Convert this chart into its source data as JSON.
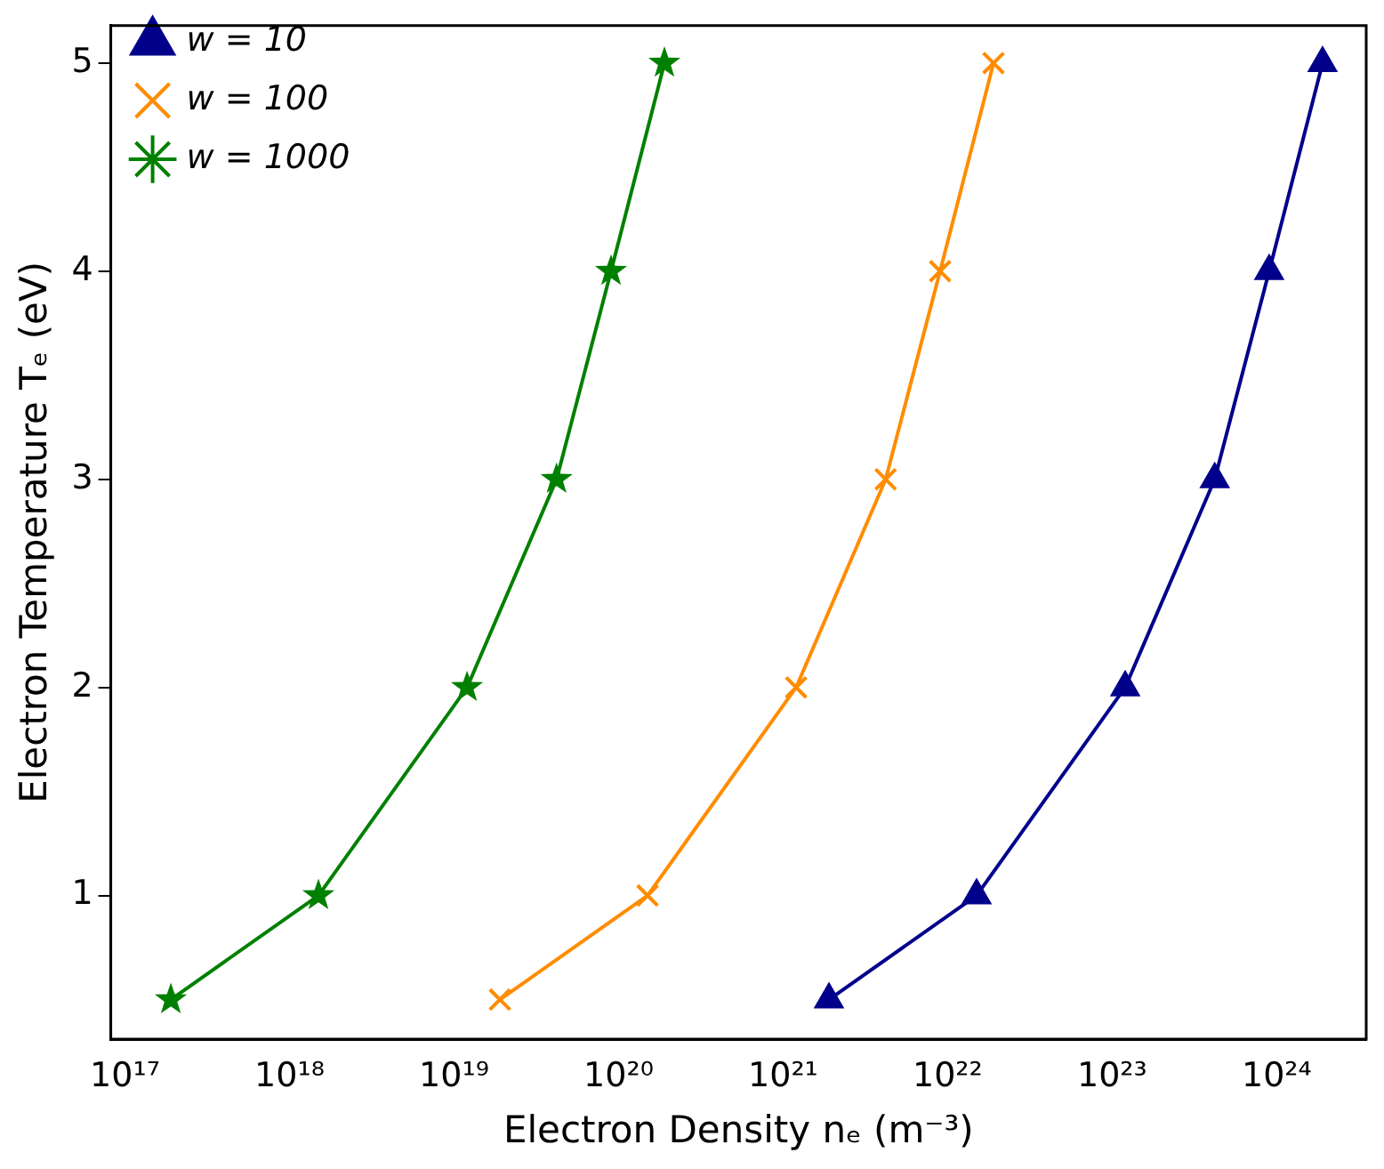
{
  "chart_data": {
    "type": "line",
    "xlabel": "Electron Density nₑ (m⁻³)",
    "ylabel": "Electron Temperature Tₑ (eV)",
    "log": "x",
    "grid": false,
    "legend": "top left",
    "xlim": [
      8.2e+16,
      3.5e+24
    ],
    "ylim": [
      0.31,
      5.18
    ],
    "xticks": [
      {
        "value": 1e+17,
        "label": "10¹⁷"
      },
      {
        "value": 1e+18,
        "label": "10¹⁸"
      },
      {
        "value": 1e+19,
        "label": "10¹⁹"
      },
      {
        "value": 1e+20,
        "label": "10²⁰"
      },
      {
        "value": 1e+21,
        "label": "10²¹"
      },
      {
        "value": 1e+22,
        "label": "10²²"
      },
      {
        "value": 1e+23,
        "label": "10²³"
      },
      {
        "value": 1e+24,
        "label": "10²⁴"
      }
    ],
    "yticks": [
      1,
      2,
      3,
      4,
      5
    ],
    "series": [
      {
        "name": "w = 10",
        "color": "#00008b",
        "marker": "triangle",
        "x": [
          1.9e+21,
          1.5e+22,
          1.2e+23,
          4.2e+23,
          9e+23,
          1.9e+24
        ],
        "values": [
          0.5,
          1,
          2,
          3,
          4,
          5
        ]
      },
      {
        "name": "w = 100",
        "color": "#ff8c00",
        "marker": "cross",
        "x": [
          1.9e+19,
          1.5e+20,
          1.2e+21,
          4.2e+21,
          9e+21,
          1.9e+22
        ],
        "values": [
          0.5,
          1,
          2,
          3,
          4,
          5
        ]
      },
      {
        "name": "w = 1000",
        "color": "#008000",
        "marker": "star",
        "x": [
          1.9e+17,
          1.5e+18,
          1.2e+19,
          4.2e+19,
          9e+19,
          1.9e+20
        ],
        "values": [
          0.5,
          1,
          2,
          3,
          4,
          5
        ]
      }
    ]
  }
}
